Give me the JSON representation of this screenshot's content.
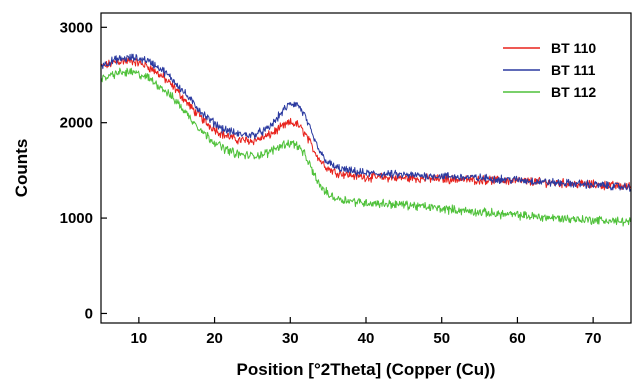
{
  "chart_data": {
    "type": "line",
    "title": "",
    "xlabel": "Position [°2Theta] (Copper (Cu))",
    "ylabel": "Counts",
    "xlim": [
      5,
      75
    ],
    "ylim": [
      -100,
      3150
    ],
    "x_ticks": [
      10,
      20,
      30,
      40,
      50,
      60,
      70
    ],
    "y_ticks": [
      0,
      1000,
      2000,
      3000
    ],
    "grid": false,
    "legend_position": "top-right",
    "x": [
      5,
      7,
      9,
      11,
      13,
      15,
      17,
      19,
      21,
      23,
      25,
      27,
      28,
      29,
      30,
      31,
      32,
      33,
      34,
      35,
      36,
      38,
      40,
      45,
      50,
      55,
      60,
      65,
      70,
      75
    ],
    "series": [
      {
        "name": "BT 110",
        "color": "#e8221c",
        "values": [
          2580,
          2640,
          2650,
          2600,
          2490,
          2340,
          2150,
          1990,
          1880,
          1820,
          1810,
          1860,
          1910,
          1960,
          2000,
          1980,
          1880,
          1730,
          1600,
          1520,
          1480,
          1450,
          1430,
          1420,
          1410,
          1400,
          1390,
          1370,
          1350,
          1330
        ]
      },
      {
        "name": "BT 111",
        "color": "#2b3aa0",
        "values": [
          2600,
          2660,
          2680,
          2660,
          2560,
          2410,
          2220,
          2050,
          1940,
          1880,
          1870,
          1930,
          2020,
          2120,
          2200,
          2190,
          2060,
          1850,
          1680,
          1580,
          1530,
          1490,
          1470,
          1450,
          1440,
          1420,
          1400,
          1370,
          1350,
          1320
        ]
      },
      {
        "name": "BT 112",
        "color": "#4fc13a",
        "values": [
          2450,
          2520,
          2530,
          2480,
          2370,
          2220,
          2030,
          1860,
          1740,
          1670,
          1650,
          1680,
          1730,
          1770,
          1790,
          1760,
          1650,
          1480,
          1330,
          1250,
          1210,
          1180,
          1160,
          1140,
          1100,
          1060,
          1030,
          1000,
          980,
          960
        ]
      }
    ]
  }
}
